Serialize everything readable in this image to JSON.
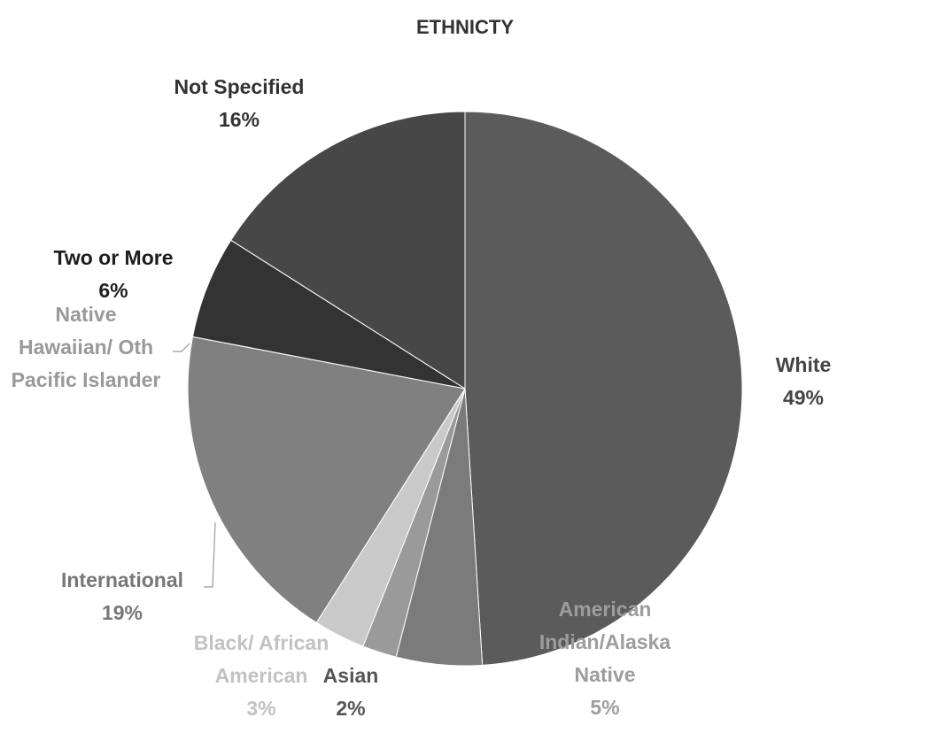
{
  "chart_data": {
    "type": "pie",
    "title": "ETHNICTY",
    "categories": [
      "White",
      "American Indian/Alaska Native",
      "Asian",
      "Black/ African American",
      "International",
      "Native Hawaiian/ Oth Pacific Islander",
      "Two or More",
      "Not Specified"
    ],
    "values": [
      49,
      5,
      2,
      3,
      19,
      0,
      6,
      16
    ],
    "value_labels": [
      "49%",
      "5%",
      "2%",
      "3%",
      "19%",
      null,
      "6%",
      "16%"
    ],
    "colors": [
      "#5b5b5b",
      "#7b7b7b",
      "#9a9a9a",
      "#c9c9c9",
      "#808080",
      "#a0a0a0",
      "#333333",
      "#474747"
    ],
    "label_colors": [
      "#444444",
      "#9d9d9d",
      "#555555",
      "#c2c2c2",
      "#777777",
      "#999999",
      "#1e1e1e",
      "#333333"
    ]
  }
}
